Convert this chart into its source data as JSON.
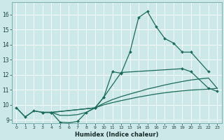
{
  "xlabel": "Humidex (Indice chaleur)",
  "xlim": [
    -0.5,
    23.5
  ],
  "ylim": [
    8.8,
    16.8
  ],
  "yticks": [
    9,
    10,
    11,
    12,
    13,
    14,
    15,
    16
  ],
  "xticks": [
    0,
    1,
    2,
    3,
    4,
    5,
    6,
    7,
    8,
    9,
    10,
    11,
    12,
    13,
    14,
    15,
    16,
    17,
    18,
    19,
    20,
    21,
    22,
    23
  ],
  "bg_color": "#cde8e8",
  "grid_color": "#ffffff",
  "line_color": "#1a6b5a",
  "c1x": [
    0,
    1,
    2,
    3,
    4,
    5,
    6,
    7,
    8,
    9,
    10,
    11,
    12,
    13,
    14,
    15,
    16,
    17,
    18,
    19,
    20,
    22
  ],
  "c1y": [
    9.8,
    9.2,
    9.6,
    9.5,
    9.5,
    8.85,
    8.8,
    8.9,
    9.5,
    9.8,
    10.5,
    12.2,
    12.1,
    13.5,
    15.8,
    16.2,
    15.2,
    14.4,
    14.1,
    13.5,
    13.5,
    12.2
  ],
  "c2x": [
    3,
    4,
    9,
    10,
    12,
    19,
    20,
    22,
    23
  ],
  "c2y": [
    9.5,
    9.5,
    9.8,
    10.5,
    12.15,
    12.4,
    12.2,
    11.1,
    10.9
  ],
  "c3x": [
    3,
    4,
    9,
    10,
    11,
    12,
    13,
    14,
    15,
    16,
    17,
    18,
    19,
    20,
    21,
    22,
    23
  ],
  "c3y": [
    9.5,
    9.5,
    9.8,
    10.1,
    10.35,
    10.55,
    10.72,
    10.88,
    11.05,
    11.18,
    11.32,
    11.44,
    11.55,
    11.65,
    11.72,
    11.78,
    11.1
  ],
  "c4x": [
    0,
    1,
    2,
    3,
    4,
    5,
    6,
    7,
    8,
    9,
    10,
    11,
    12,
    13,
    14,
    15,
    16,
    17,
    18,
    19,
    20,
    21,
    22,
    23
  ],
  "c4y": [
    9.8,
    9.2,
    9.6,
    9.5,
    9.5,
    9.3,
    9.3,
    9.35,
    9.5,
    9.8,
    10.0,
    10.15,
    10.28,
    10.4,
    10.52,
    10.62,
    10.72,
    10.8,
    10.87,
    10.93,
    10.98,
    11.01,
    11.04,
    11.1
  ]
}
